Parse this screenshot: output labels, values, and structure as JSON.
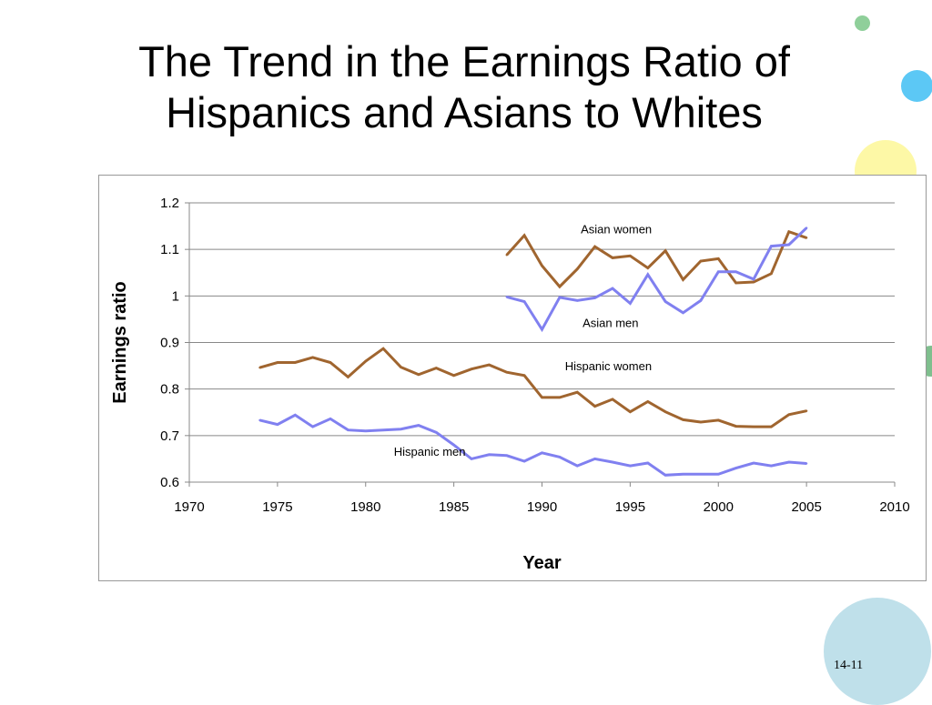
{
  "slide": {
    "title_line1": "The Trend in the Earnings Ratio of",
    "title_line2": "Hispanics and Asians to Whites",
    "page_number": "14-11"
  },
  "colors": {
    "women_line": "#a0652f",
    "men_line": "#8080f0",
    "grid": "#888888",
    "deco_green": "#8fcf9a",
    "deco_cyan": "#5cc8f5",
    "deco_yellow": "#fdf8a6",
    "deco_green2": "#7fbf8e",
    "deco_lightblue": "#bfe0ea"
  },
  "chart_data": {
    "type": "line",
    "title": "",
    "xlabel": "Year",
    "ylabel": "Earnings ratio",
    "xlim": [
      1970,
      2010
    ],
    "ylim": [
      0.6,
      1.2
    ],
    "x_ticks": [
      1970,
      1975,
      1980,
      1985,
      1990,
      1995,
      2000,
      2005,
      2010
    ],
    "x_tick_labels": [
      "1970",
      "1975",
      "1980",
      "1985",
      "1990",
      "1995",
      "2000",
      "2005",
      "2010"
    ],
    "y_ticks": [
      0.6,
      0.7,
      0.8,
      0.9,
      1.0,
      1.1,
      1.2
    ],
    "y_tick_labels": [
      "0.6",
      "0.7",
      "0.8",
      "0.9",
      "1",
      "1.1",
      "1.2"
    ],
    "grid": true,
    "series": [
      {
        "name": "Asian women",
        "color_key": "women_line",
        "x": [
          1988,
          1989,
          1990,
          1991,
          1992,
          1993,
          1994,
          1995,
          1996,
          1997,
          1998,
          1999,
          2000,
          2001,
          2002,
          2003,
          2004,
          2005
        ],
        "y": [
          1.088,
          1.13,
          1.065,
          1.02,
          1.058,
          1.106,
          1.082,
          1.086,
          1.06,
          1.097,
          1.035,
          1.075,
          1.08,
          1.028,
          1.03,
          1.048,
          1.138,
          1.125
        ]
      },
      {
        "name": "Asian men",
        "color_key": "men_line",
        "x": [
          1988,
          1989,
          1990,
          1991,
          1992,
          1993,
          1994,
          1995,
          1996,
          1997,
          1998,
          1999,
          2000,
          2001,
          2002,
          2003,
          2004,
          2005
        ],
        "y": [
          0.998,
          0.988,
          0.928,
          0.997,
          0.99,
          0.996,
          1.016,
          0.984,
          1.046,
          0.988,
          0.964,
          0.99,
          1.052,
          1.052,
          1.036,
          1.107,
          1.11,
          1.146
        ]
      },
      {
        "name": "Hispanic women",
        "color_key": "women_line",
        "x": [
          1974,
          1975,
          1976,
          1977,
          1978,
          1979,
          1980,
          1981,
          1982,
          1983,
          1984,
          1985,
          1986,
          1987,
          1988,
          1989,
          1990,
          1991,
          1992,
          1993,
          1994,
          1995,
          1996,
          1997,
          1998,
          1999,
          2000,
          2001,
          2002,
          2003,
          2004,
          2005
        ],
        "y": [
          0.846,
          0.857,
          0.857,
          0.868,
          0.857,
          0.826,
          0.86,
          0.887,
          0.847,
          0.831,
          0.845,
          0.829,
          0.843,
          0.852,
          0.836,
          0.829,
          0.782,
          0.782,
          0.793,
          0.763,
          0.778,
          0.751,
          0.773,
          0.751,
          0.734,
          0.729,
          0.733,
          0.72,
          0.719,
          0.719,
          0.745,
          0.753
        ]
      },
      {
        "name": "Hispanic men",
        "color_key": "men_line",
        "x": [
          1974,
          1975,
          1976,
          1977,
          1978,
          1979,
          1980,
          1981,
          1982,
          1983,
          1984,
          1985,
          1986,
          1987,
          1988,
          1989,
          1990,
          1991,
          1992,
          1993,
          1994,
          1995,
          1996,
          1997,
          1998,
          1999,
          2000,
          2001,
          2002,
          2003,
          2004,
          2005
        ],
        "y": [
          0.733,
          0.724,
          0.744,
          0.719,
          0.736,
          0.712,
          0.71,
          0.712,
          0.714,
          0.722,
          0.707,
          0.68,
          0.65,
          0.659,
          0.657,
          0.645,
          0.663,
          0.654,
          0.635,
          0.65,
          0.643,
          0.635,
          0.641,
          0.615,
          0.617,
          0.617,
          0.617,
          0.63,
          0.641,
          0.635,
          0.643,
          0.64
        ]
      }
    ],
    "annotations": [
      {
        "text": "Asian women",
        "x": 1992.2,
        "y": 1.135
      },
      {
        "text": "Asian men",
        "x": 1992.3,
        "y": 0.933
      },
      {
        "text": "Hispanic women",
        "x": 1991.3,
        "y": 0.84
      },
      {
        "text": "Hispanic men",
        "x": 1981.6,
        "y": 0.657
      }
    ]
  }
}
